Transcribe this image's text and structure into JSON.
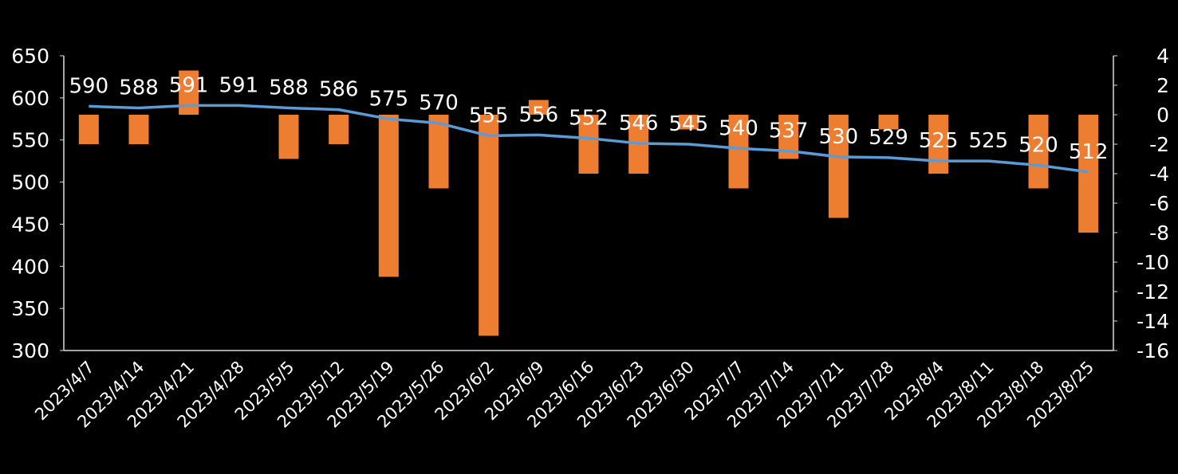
{
  "chart_data": {
    "type": "bar+line",
    "categories": [
      "2023/4/7",
      "2023/4/14",
      "2023/4/21",
      "2023/4/28",
      "2023/5/5",
      "2023/5/12",
      "2023/5/19",
      "2023/5/26",
      "2023/6/2",
      "2023/6/9",
      "2023/6/16",
      "2023/6/23",
      "2023/6/30",
      "2023/7/7",
      "2023/7/14",
      "2023/7/21",
      "2023/7/28",
      "2023/8/4",
      "2023/8/11",
      "2023/8/18",
      "2023/8/25"
    ],
    "series": [
      {
        "name": "line",
        "axis": "left",
        "type": "line",
        "color": "#5b9bd5",
        "values": [
          590,
          588,
          591,
          591,
          588,
          586,
          575,
          570,
          555,
          556,
          552,
          546,
          545,
          540,
          537,
          530,
          529,
          525,
          525,
          520,
          512
        ]
      },
      {
        "name": "bar",
        "axis": "right",
        "type": "bar",
        "color": "#ed7d31",
        "values": [
          -2,
          -2,
          3,
          0,
          -3,
          -2,
          -11,
          -5,
          -15,
          1,
          -4,
          -4,
          -1,
          -5,
          -3,
          -7,
          -1,
          -4,
          0,
          -5,
          -8
        ]
      }
    ],
    "left_axis": {
      "ylim": [
        300,
        650
      ],
      "ticks": [
        "300",
        "350",
        "400",
        "450",
        "500",
        "550",
        "600",
        "650"
      ]
    },
    "right_axis": {
      "ylim": [
        -16,
        4
      ],
      "ticks": [
        "-16",
        "-14",
        "-12",
        "-10",
        "-8",
        "-6",
        "-4",
        "-2",
        "0",
        "2",
        "4"
      ]
    },
    "title": "",
    "xlabel": "",
    "ylabel": "",
    "grid": false
  }
}
